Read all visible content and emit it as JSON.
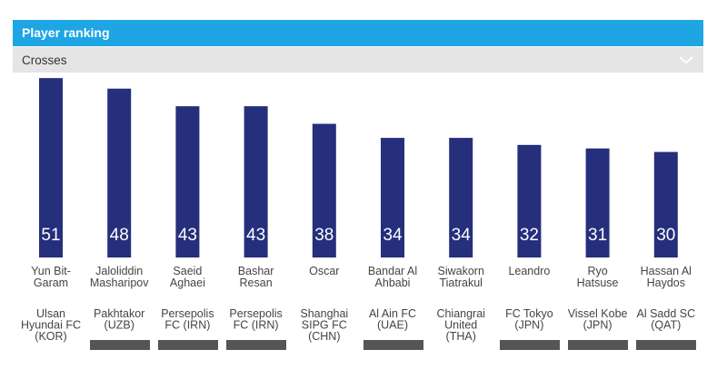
{
  "header": {
    "title": "Player ranking",
    "metric": "Crosses"
  },
  "chart_data": {
    "type": "bar",
    "color": "#252f7c",
    "players": [
      [
        "Yun Bit-",
        "Garam"
      ],
      [
        "Jaloliddin",
        "Masharipov"
      ],
      [
        "Saeid",
        "Aghaei"
      ],
      [
        "Bashar",
        "Resan"
      ],
      [
        "Oscar"
      ],
      [
        "Bandar Al",
        "Ahbabi"
      ],
      [
        "Siwakorn",
        "Tiatrakul"
      ],
      [
        "Leandro"
      ],
      [
        "Ryo",
        "Hatsuse"
      ],
      [
        "Hassan Al",
        "Haydos"
      ]
    ],
    "teams": [
      [
        "Ulsan",
        "Hyundai FC",
        "(KOR)"
      ],
      [
        "Pakhtakor",
        "(UZB)"
      ],
      [
        "Persepolis",
        "FC (IRN)"
      ],
      [
        "Persepolis",
        "FC (IRN)"
      ],
      [
        "Shanghai",
        "SIPG FC",
        "(CHN)"
      ],
      [
        "Al Ain FC",
        "(UAE)"
      ],
      [
        "Chiangrai",
        "United",
        "(THA)"
      ],
      [
        "FC Tokyo",
        "(JPN)"
      ],
      [
        "Vissel Kobe",
        "(JPN)"
      ],
      [
        "Al Sadd SC",
        "(QAT)"
      ]
    ],
    "values": [
      51,
      48,
      43,
      43,
      38,
      34,
      34,
      32,
      31,
      30
    ]
  }
}
